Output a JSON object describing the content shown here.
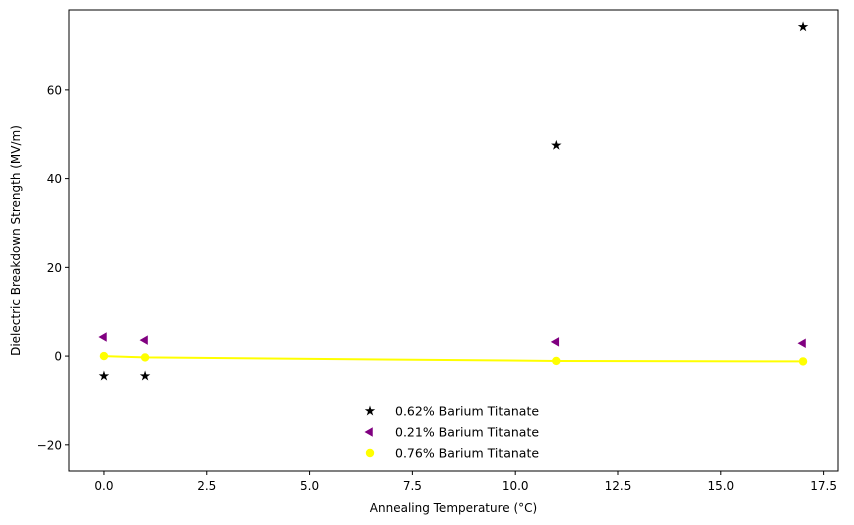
{
  "chart_data": {
    "type": "scatter",
    "xlabel": "Annealing Temperature (°C)",
    "ylabel": "Dielectric Breakdown Strength (MV/m)",
    "xlim": [
      -0.85,
      17.85
    ],
    "ylim": [
      -25.9,
      78.0
    ],
    "xticks": [
      0.0,
      2.5,
      5.0,
      7.5,
      10.0,
      12.5,
      15.0,
      17.5
    ],
    "xtick_labels": [
      "0.0",
      "2.5",
      "5.0",
      "7.5",
      "10.0",
      "12.5",
      "15.0",
      "17.5"
    ],
    "yticks": [
      -20,
      0,
      20,
      40,
      60
    ],
    "ytick_labels": [
      "−20",
      "0",
      "20",
      "40",
      "60"
    ],
    "grid": false,
    "legend_position": "bottom-center",
    "series": [
      {
        "name": "0.62% Barium Titanate",
        "marker": "star",
        "color": "#000000",
        "line": false,
        "points": [
          [
            0,
            -4.5
          ],
          [
            1,
            -4.5
          ],
          [
            11,
            47.5
          ],
          [
            17,
            74.2
          ]
        ]
      },
      {
        "name": "0.21% Barium Titanate",
        "marker": "triangle-left",
        "color": "#800080",
        "line": false,
        "points": [
          [
            0,
            4.3
          ],
          [
            1,
            3.6
          ],
          [
            11,
            3.2
          ],
          [
            17,
            2.9
          ]
        ]
      },
      {
        "name": "0.76% Barium Titanate",
        "marker": "circle",
        "color": "#ffff00",
        "line": true,
        "points": [
          [
            0,
            0.0
          ],
          [
            1,
            -0.3
          ],
          [
            11,
            -1.1
          ],
          [
            17,
            -1.2
          ]
        ]
      }
    ]
  }
}
